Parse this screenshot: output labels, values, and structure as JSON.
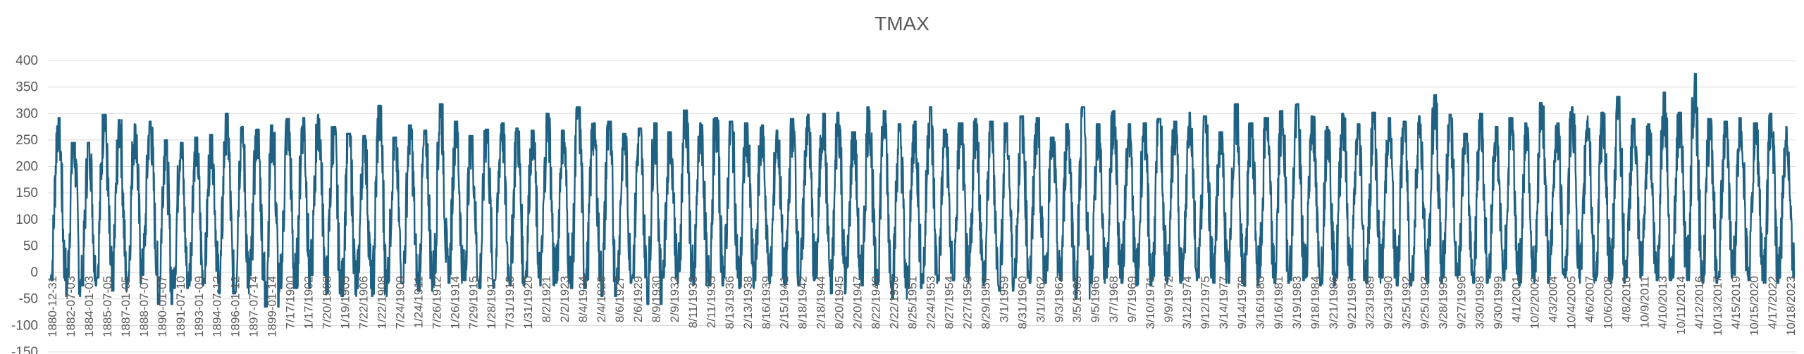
{
  "chart_data": {
    "type": "line",
    "title": "TMAX",
    "xlabel": "",
    "ylabel": "",
    "ylim": [
      -150,
      400
    ],
    "yticks": [
      -150,
      -100,
      -50,
      0,
      50,
      100,
      150,
      200,
      250,
      300,
      350,
      400
    ],
    "grid": "horizontal",
    "legend": "none",
    "line_color": "#1F6182",
    "x_tick_labels": [
      "1880-12-31",
      "1882-07-03",
      "1884-01-03",
      "1885-07-05",
      "1887-01-05",
      "1888-07-07",
      "1890-01-07",
      "1891-07-10",
      "1893-01-09",
      "1894-07-12",
      "1896-01-12",
      "1897-07-14",
      "1899-01-14",
      "7/17/1900",
      "1/17/1902",
      "7/20/1903",
      "1/19/1905",
      "7/22/1906",
      "1/22/1908",
      "7/24/1909",
      "1/24/1911",
      "7/26/1912",
      "1/26/1914",
      "7/29/1915",
      "1/28/1917",
      "7/31/1918",
      "1/31/1920",
      "8/2/1921",
      "2/2/1923",
      "8/4/1924",
      "2/4/1926",
      "8/6/1927",
      "2/6/1929",
      "8/9/1930",
      "2/9/1932",
      "8/11/1933",
      "2/11/1935",
      "8/13/1936",
      "2/13/1938",
      "8/16/1939",
      "2/15/1941",
      "8/18/1942",
      "2/18/1944",
      "8/20/1945",
      "2/20/1947",
      "8/22/1948",
      "2/22/1950",
      "8/25/1951",
      "2/24/1953",
      "8/27/1954",
      "2/27/1956",
      "8/29/1957",
      "3/1/1959",
      "8/31/1960",
      "3/1/1962",
      "9/3/1963",
      "3/5/1965",
      "9/5/1966",
      "3/7/1968",
      "9/7/1969",
      "3/10/1971",
      "9/9/1972",
      "3/12/1974",
      "9/12/1975",
      "3/14/1977",
      "9/14/1978",
      "3/16/1980",
      "9/16/1981",
      "3/19/1983",
      "9/18/1984",
      "3/21/1986",
      "9/21/1987",
      "3/23/1989",
      "9/23/1990",
      "3/25/1992",
      "9/25/1993",
      "3/28/1995",
      "9/27/1996",
      "3/30/1998",
      "9/30/1999",
      "4/1/2001",
      "10/2/2002",
      "4/3/2004",
      "10/4/2005",
      "4/6/2007",
      "10/6/2008",
      "4/8/2010",
      "10/9/2011",
      "4/10/2013",
      "10/11/2014",
      "4/12/2016",
      "10/13/2017",
      "4/15/2019",
      "10/15/2020",
      "4/17/2022",
      "10/18/2023"
    ],
    "series": [
      {
        "annual_peaks": [
          292,
          245,
          245,
          298,
          288,
          280,
          285,
          250,
          245,
          255,
          260,
          300,
          275,
          270,
          278,
          290,
          292,
          298,
          275,
          262,
          258,
          315,
          255,
          278,
          268,
          318,
          285,
          258,
          270,
          282,
          272,
          268,
          300,
          268,
          312,
          282,
          285,
          262,
          272,
          282,
          265,
          306,
          282,
          292,
          285,
          282,
          278,
          268,
          290,
          298,
          300,
          302,
          265,
          312,
          305,
          280,
          285,
          312,
          270,
          282,
          290,
          285,
          282,
          295,
          292,
          255,
          280,
          312,
          280,
          305,
          280,
          282,
          290,
          285,
          302,
          295,
          265,
          318,
          282,
          292,
          305,
          318,
          295,
          275,
          300,
          280,
          302,
          292,
          285,
          295,
          335,
          298,
          262,
          300,
          275,
          292,
          282,
          320,
          282,
          312,
          295,
          302,
          332,
          290,
          280,
          340,
          302,
          375,
          290,
          285,
          292,
          282,
          300,
          275
        ],
        "annual_troughs": [
          -15,
          -45,
          -25,
          -10,
          -35,
          -20,
          -5,
          -60,
          -30,
          -25,
          -20,
          -40,
          -40,
          -15,
          -65,
          -30,
          -30,
          -5,
          -40,
          -45,
          -30,
          -45,
          -20,
          -20,
          -35,
          -25,
          -20,
          -15,
          -30,
          -15,
          -25,
          -10,
          -25,
          -20,
          -30,
          -15,
          -45,
          -20,
          -10,
          -60,
          -10,
          -20,
          -25,
          -25,
          -10,
          -30,
          -15,
          -20,
          -25,
          -15,
          -10,
          -40,
          -20,
          -25,
          -20,
          -50,
          -30,
          -20,
          -15,
          -15,
          -20,
          -25,
          -35,
          -10,
          -20,
          -20,
          -15,
          -50,
          -20,
          -10,
          -20,
          -25,
          -15,
          -20,
          -15,
          -10,
          -20,
          -20,
          -25,
          -10,
          -20,
          -15,
          -10,
          -25,
          -10,
          -15,
          -20,
          -10,
          -25,
          -15,
          -20,
          -10,
          -5,
          -20,
          -10,
          -15,
          -25,
          -20,
          -5,
          -10,
          -20,
          -15,
          -20,
          -10,
          -5,
          -15,
          -10,
          -15,
          -20,
          -10,
          -5,
          -15,
          -20,
          -10,
          -5
        ]
      }
    ]
  }
}
